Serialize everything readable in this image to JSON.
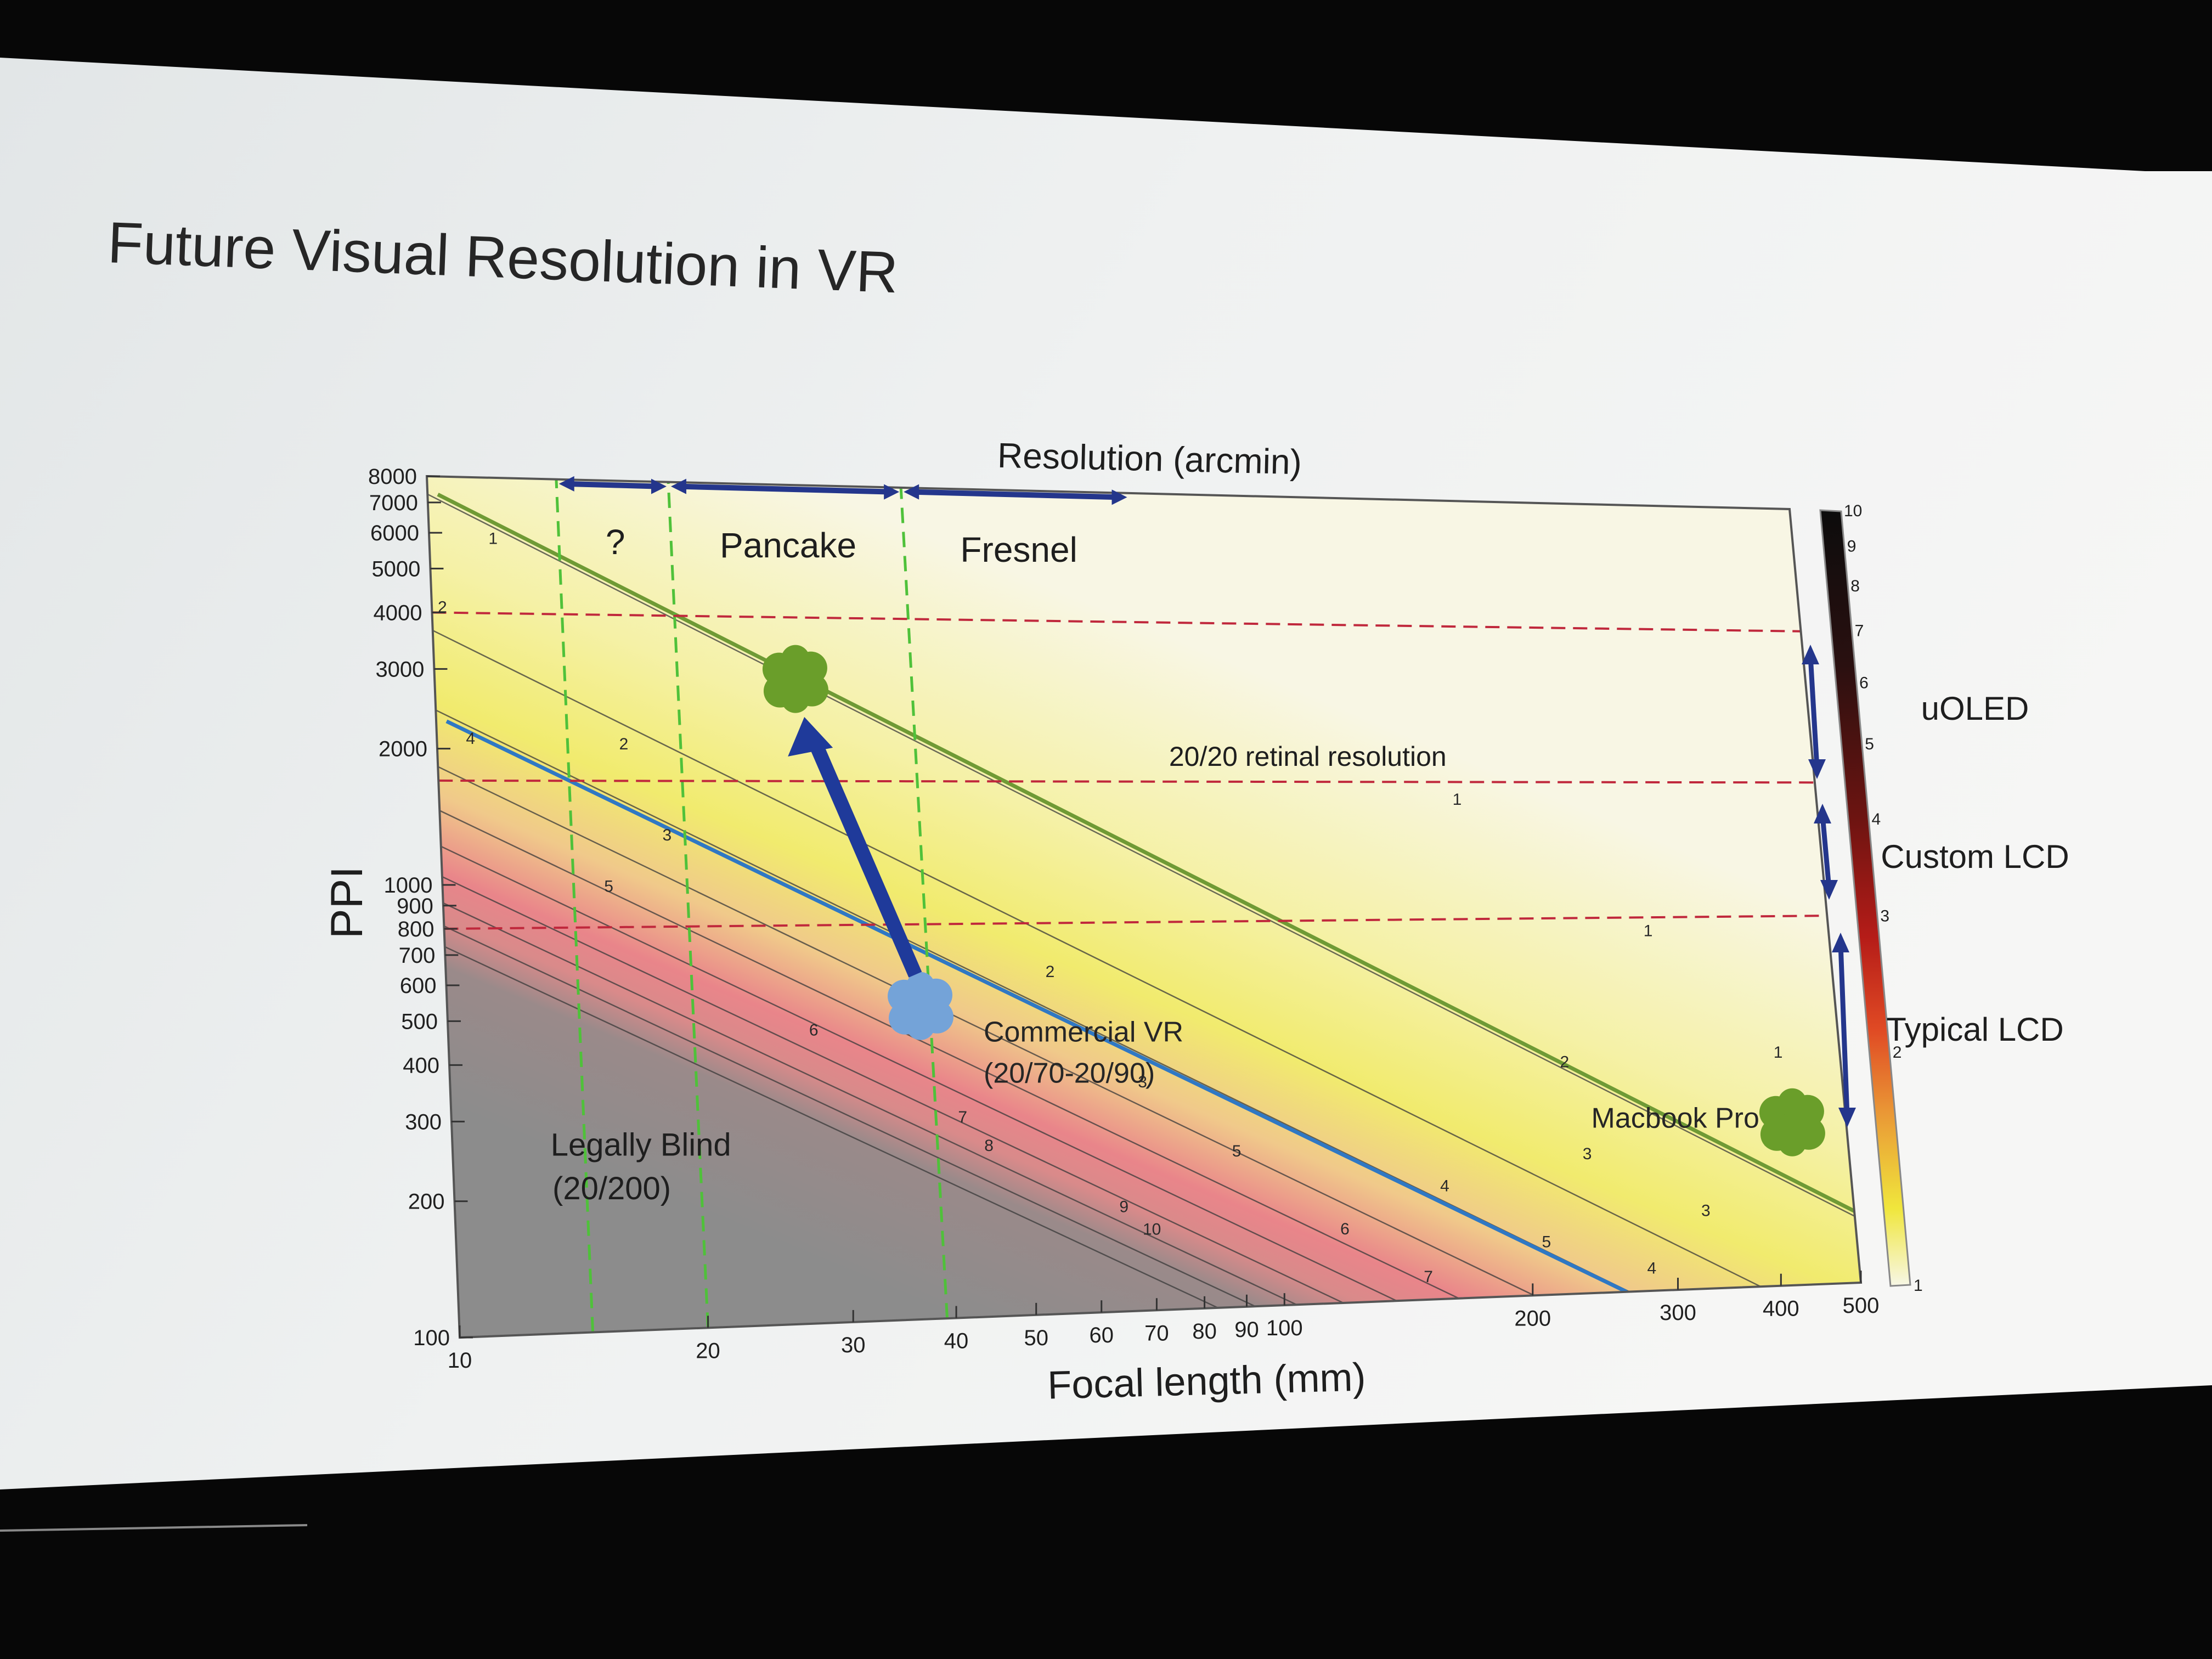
{
  "slide": {
    "title": "Future Visual Resolution in VR"
  },
  "chart_data": {
    "type": "heatmap",
    "title": "Resolution (arcmin)",
    "xlabel": "Focal length (mm)",
    "ylabel": "PPI",
    "x_scale": "log",
    "y_scale": "log",
    "xlim": [
      10,
      500
    ],
    "ylim": [
      100,
      8000
    ],
    "x_ticks": [
      10,
      20,
      30,
      40,
      50,
      60,
      70,
      80,
      90,
      100,
      200,
      300,
      400,
      500
    ],
    "y_ticks": [
      100,
      200,
      300,
      400,
      500,
      600,
      700,
      800,
      900,
      1000,
      2000,
      3000,
      4000,
      5000,
      6000,
      7000,
      8000
    ],
    "colorbar": {
      "ticks": [
        1,
        2,
        3,
        4,
        5,
        6,
        7,
        8,
        9,
        10
      ],
      "colors": [
        "#f7f7e6",
        "#f0e63c",
        "#ea8a35",
        "#d62a22",
        "#8a1410",
        "#101010"
      ],
      "side_labels": [
        "uOLED",
        "Custom LCD",
        "Typical LCD"
      ]
    },
    "contours": [
      {
        "value": 1,
        "labels": [
          {
            "text": "1",
            "x": 180,
            "y": 1500
          },
          {
            "text": "1",
            "x": 300,
            "y": 720
          },
          {
            "text": "1",
            "x": 420,
            "y": 360
          },
          {
            "text": "1",
            "x": 12,
            "y": 5700
          }
        ]
      },
      {
        "value": 2,
        "labels": [
          {
            "text": "2",
            "x": 55,
            "y": 600
          },
          {
            "text": "2",
            "x": 230,
            "y": 350
          },
          {
            "text": "2",
            "x": 400,
            "y": 220
          },
          {
            "text": "2",
            "x": 17,
            "y": 2000
          },
          {
            "text": "2",
            "x": 10.3,
            "y": 4000
          }
        ]
      },
      {
        "value": 3,
        "labels": [
          {
            "text": "3",
            "x": 70,
            "y": 330
          },
          {
            "text": "3",
            "x": 240,
            "y": 210
          },
          {
            "text": "3",
            "x": 330,
            "y": 150
          },
          {
            "text": "3",
            "x": 19,
            "y": 1250
          }
        ]
      },
      {
        "value": 4,
        "labels": [
          {
            "text": "4",
            "x": 160,
            "y": 180
          },
          {
            "text": "4",
            "x": 280,
            "y": 110
          },
          {
            "text": "4",
            "x": 11,
            "y": 2050
          }
        ]
      },
      {
        "value": 5,
        "labels": [
          {
            "text": "5",
            "x": 90,
            "y": 225
          },
          {
            "text": "5",
            "x": 210,
            "y": 130
          },
          {
            "text": "5",
            "x": 16,
            "y": 960
          }
        ]
      },
      {
        "value": 6,
        "labels": [
          {
            "text": "6",
            "x": 28,
            "y": 450
          },
          {
            "text": "6",
            "x": 120,
            "y": 145
          }
        ]
      },
      {
        "value": 7,
        "labels": [
          {
            "text": "7",
            "x": 42,
            "y": 280
          },
          {
            "text": "7",
            "x": 150,
            "y": 110
          }
        ]
      },
      {
        "value": 8,
        "labels": [
          {
            "text": "8",
            "x": 45,
            "y": 240
          }
        ]
      },
      {
        "value": 9,
        "labels": [
          {
            "text": "9",
            "x": 65,
            "y": 170
          }
        ]
      },
      {
        "value": 10,
        "labels": [
          {
            "text": "10",
            "x": 70,
            "y": 150
          }
        ]
      }
    ],
    "lines": [
      {
        "name": "20/20 retinal resolution",
        "x": [
          10.3,
          500
        ],
        "y": [
          7300,
          150
        ]
      },
      {
        "name": "Commercial VR",
        "x": [
          10.3,
          260
        ],
        "y": [
          2300,
          100
        ]
      }
    ],
    "vertical_dashed_x": [
      14.5,
      20,
      39
    ],
    "horizontal_dashed_y": [
      4000,
      1700,
      800
    ],
    "ranges": [
      {
        "label": "?",
        "from": 14.5,
        "to": 20
      },
      {
        "label": "Pancake",
        "from": 20,
        "to": 39
      },
      {
        "label": "Fresnel",
        "from": 39,
        "to": 75
      }
    ],
    "points": [
      {
        "label": "",
        "x": 28,
        "y": 2900,
        "color": "#6a9e2a"
      },
      {
        "label": "Commercial VR",
        "sublabel": "(20/70-20/90)",
        "x": 38,
        "y": 520,
        "color": "#74a3d8"
      },
      {
        "label": "Macbook Pro",
        "x": 430,
        "y": 250,
        "color": "#6a9e2a"
      }
    ],
    "region_labels": [
      {
        "text": "Legally Blind",
        "x": 12,
        "y": 250
      },
      {
        "text": "(20/200)",
        "x": 12,
        "y": 200
      },
      {
        "text": "20/20 retinal resolution",
        "x": 80,
        "y": 1850
      }
    ]
  }
}
